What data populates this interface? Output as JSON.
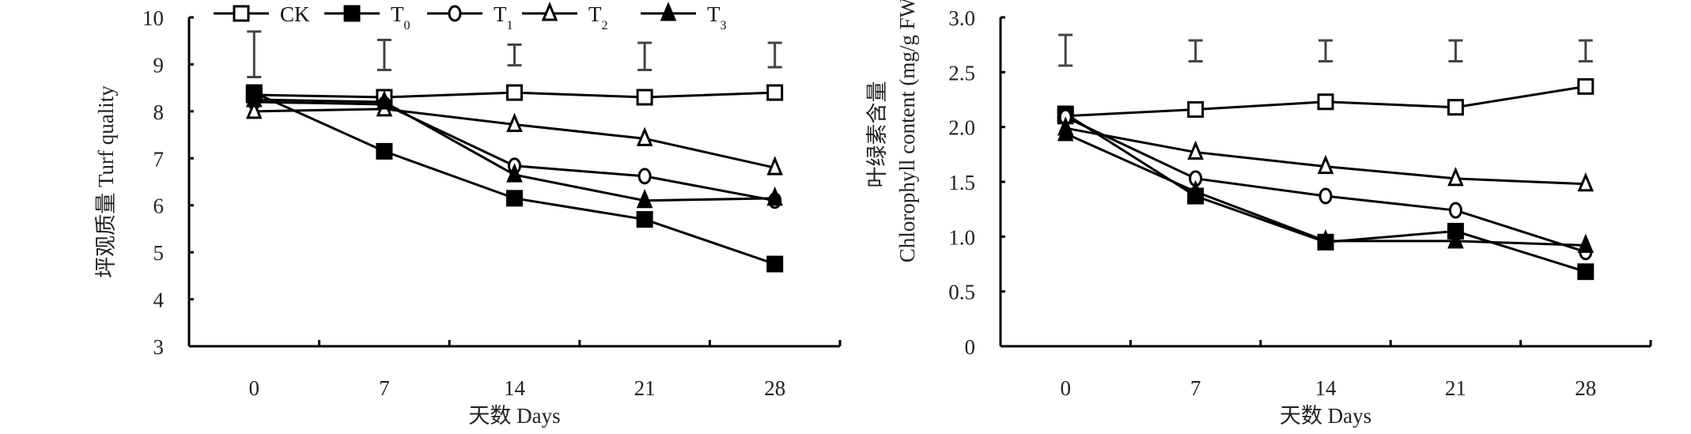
{
  "chart_data": [
    {
      "type": "line",
      "title": "",
      "xlabel": "天数 Days",
      "ylabel": "坪观质量 Turf quality",
      "categories": [
        "0",
        "7",
        "14",
        "21",
        "28"
      ],
      "ylim": [
        3,
        10
      ],
      "yticks": [
        "3",
        "4",
        "5",
        "6",
        "7",
        "8",
        "9",
        "10"
      ],
      "grid": false,
      "legend_position": "top",
      "series": [
        {
          "name": "CK",
          "label": "CK",
          "sub": "",
          "marker": "square-open",
          "values": [
            8.35,
            8.3,
            8.4,
            8.3,
            8.4
          ]
        },
        {
          "name": "T0",
          "label": "T",
          "sub": "0",
          "marker": "square-filled",
          "values": [
            8.4,
            7.15,
            6.15,
            5.7,
            4.75
          ]
        },
        {
          "name": "T1",
          "label": "T",
          "sub": "1",
          "marker": "circle-open",
          "values": [
            8.2,
            8.15,
            6.84,
            6.62,
            6.1
          ]
        },
        {
          "name": "T2",
          "label": "T",
          "sub": "2",
          "marker": "triangle-open",
          "values": [
            8.0,
            8.05,
            7.72,
            7.42,
            6.8
          ]
        },
        {
          "name": "T3",
          "label": "T",
          "sub": "3",
          "marker": "triangle-filled",
          "values": [
            8.25,
            8.2,
            6.65,
            6.1,
            6.15
          ]
        }
      ],
      "error_bars": [
        [
          8.73,
          9.7
        ],
        [
          8.88,
          9.52
        ],
        [
          8.98,
          9.42
        ],
        [
          8.88,
          9.46
        ],
        [
          8.94,
          9.46
        ]
      ]
    },
    {
      "type": "line",
      "title": "",
      "xlabel": "天数 Days",
      "ylabel_cn": "叶绿素含量",
      "ylabel": "Chlorophyll content (mg/g FW)",
      "categories": [
        "0",
        "7",
        "14",
        "21",
        "28"
      ],
      "ylim": [
        0,
        3.0
      ],
      "yticks": [
        "0",
        "0.5",
        "1.0",
        "1.5",
        "2.0",
        "2.5",
        "3.0"
      ],
      "grid": false,
      "series": [
        {
          "name": "CK",
          "marker": "square-open",
          "values": [
            2.1,
            2.16,
            2.23,
            2.18,
            2.37
          ]
        },
        {
          "name": "T0",
          "marker": "square-filled",
          "values": [
            2.12,
            1.37,
            0.95,
            1.05,
            0.68
          ]
        },
        {
          "name": "T1",
          "marker": "circle-open",
          "values": [
            2.09,
            1.53,
            1.37,
            1.24,
            0.86
          ]
        },
        {
          "name": "T2",
          "marker": "triangle-open",
          "values": [
            1.99,
            1.77,
            1.64,
            1.53,
            1.48
          ]
        },
        {
          "name": "T3",
          "marker": "triangle-filled",
          "values": [
            1.94,
            1.41,
            0.96,
            0.96,
            0.92
          ]
        }
      ],
      "error_bars": [
        [
          2.56,
          2.84
        ],
        [
          2.6,
          2.79
        ],
        [
          2.6,
          2.79
        ],
        [
          2.6,
          2.79
        ],
        [
          2.6,
          2.79
        ]
      ]
    }
  ]
}
